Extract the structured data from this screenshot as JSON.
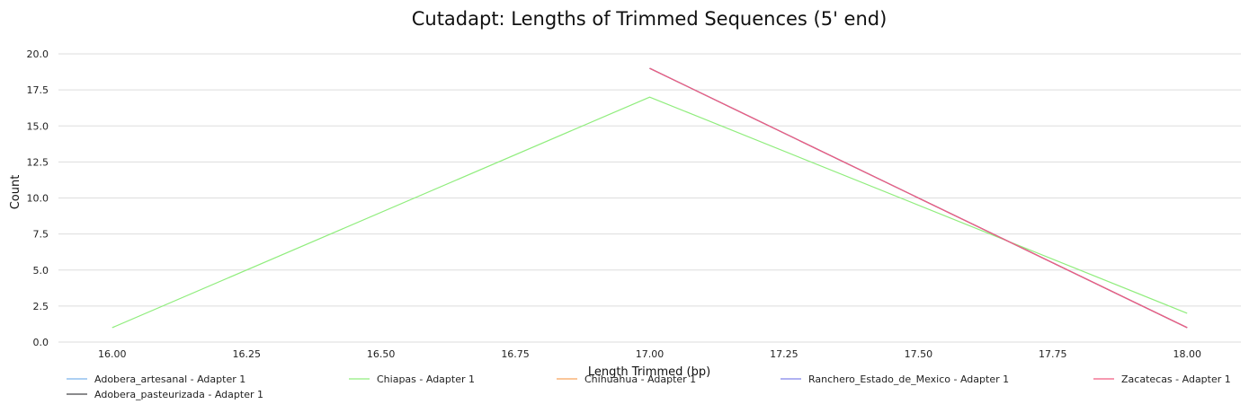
{
  "chart_data": {
    "type": "line",
    "title": "Cutadapt: Lengths of Trimmed Sequences (5' end)",
    "xlabel": "Length Trimmed (bp)",
    "ylabel": "Count",
    "xlim": [
      15.9,
      18.1
    ],
    "ylim": [
      0,
      20
    ],
    "xticks": [
      "16.00",
      "16.25",
      "16.50",
      "16.75",
      "17.00",
      "17.25",
      "17.50",
      "17.75",
      "18.00"
    ],
    "yticks": [
      "0.0",
      "2.5",
      "5.0",
      "7.5",
      "10.0",
      "12.5",
      "15.0",
      "17.5",
      "20.0"
    ],
    "grid": "horizontal",
    "legend_position": "bottom",
    "series": [
      {
        "name": "Adobera_artesanal - Adapter 1",
        "color": "#7cb5ec",
        "x": [
          17,
          18
        ],
        "y": [
          19,
          1
        ]
      },
      {
        "name": "Adobera_pasteurizada - Adapter 1",
        "color": "#434348",
        "x": [
          17,
          18
        ],
        "y": [
          19,
          1
        ]
      },
      {
        "name": "Chiapas - Adapter 1",
        "color": "#90ed7d",
        "x": [
          16,
          17,
          18
        ],
        "y": [
          1,
          17,
          2
        ]
      },
      {
        "name": "Chihuahua - Adapter 1",
        "color": "#f7a35c",
        "x": [
          17,
          18
        ],
        "y": [
          19,
          1
        ]
      },
      {
        "name": "Ranchero_Estado_de_Mexico - Adapter 1",
        "color": "#8085e9",
        "x": [
          17,
          18
        ],
        "y": [
          19,
          1
        ]
      },
      {
        "name": "Zacatecas - Adapter 1",
        "color": "#f15c80",
        "x": [
          17,
          18
        ],
        "y": [
          19,
          1
        ]
      }
    ]
  }
}
